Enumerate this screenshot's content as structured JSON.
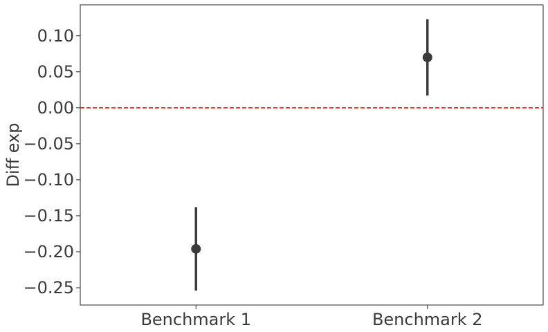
{
  "chart_data": {
    "type": "pointplot",
    "categories": [
      "Benchmark 1",
      "Benchmark 2"
    ],
    "series": [
      {
        "values": [
          -0.196,
          0.07
        ],
        "ci_low": [
          -0.254,
          0.017
        ],
        "ci_high": [
          -0.138,
          0.123
        ]
      }
    ],
    "ylabel": "Diff exp",
    "xlabel": "",
    "ylim": [
      -0.274,
      0.143
    ],
    "yticks": [
      0.1,
      0.05,
      0.0,
      -0.05,
      -0.1,
      -0.15,
      -0.2,
      -0.25
    ],
    "ytick_labels": [
      "0.10",
      "0.05",
      "0.00",
      "−0.05",
      "−0.10",
      "−0.15",
      "−0.20",
      "−0.25"
    ],
    "reference_line": {
      "y": 0,
      "style": "dashed",
      "color": "#ff0000"
    },
    "marker_color": "#3b3b3b",
    "grid": false,
    "legend": "none"
  }
}
